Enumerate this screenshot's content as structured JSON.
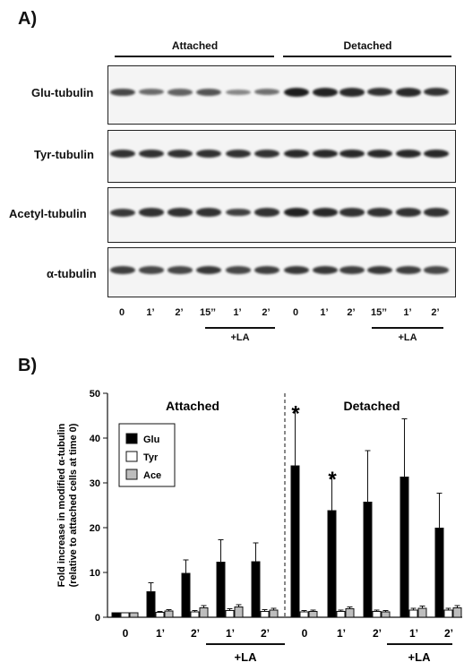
{
  "panel_a": {
    "label": "A)",
    "group_attached": "Attached",
    "group_detached": "Detached",
    "blots": [
      {
        "label": "Glu-tubulin",
        "intensity": [
          0.7,
          0.45,
          0.5,
          0.6,
          0.25,
          0.4,
          1.0,
          0.95,
          0.9,
          0.85,
          0.9,
          0.85
        ]
      },
      {
        "label": "Tyr-tubulin",
        "intensity": [
          0.85,
          0.85,
          0.85,
          0.85,
          0.85,
          0.85,
          0.9,
          0.9,
          0.9,
          0.9,
          0.9,
          0.9
        ]
      },
      {
        "label": "Acetyl-tubulin",
        "intensity": [
          0.8,
          0.85,
          0.85,
          0.85,
          0.75,
          0.85,
          0.95,
          0.9,
          0.85,
          0.85,
          0.85,
          0.85
        ]
      },
      {
        "label": "α-tubulin",
        "intensity": [
          0.75,
          0.7,
          0.7,
          0.8,
          0.7,
          0.75,
          0.8,
          0.8,
          0.75,
          0.8,
          0.75,
          0.7
        ]
      }
    ],
    "lanes": [
      "0",
      "1’",
      "2’",
      "15’’",
      "1’",
      "2’",
      "0",
      "1’",
      "2’",
      "15’’",
      "1’",
      "2’"
    ],
    "la_label": "+LA"
  },
  "panel_b": {
    "label": "B)",
    "group_attached": "Attached",
    "group_detached": "Detached",
    "la_label": "+LA"
  },
  "chart_data": {
    "type": "bar",
    "ylabel": "Fold increase in  modified α-tubulin (relative to attached cells at time 0)",
    "ylim": [
      0,
      50
    ],
    "yticks": [
      0,
      10,
      20,
      30,
      40,
      50
    ],
    "categories": [
      "0",
      "1’",
      "2’",
      "1’",
      "2’",
      "0",
      "1’",
      "2’",
      "1’",
      "2’"
    ],
    "series": [
      {
        "name": "Glu",
        "color": "#000000",
        "values": [
          1,
          5.7,
          9.8,
          12.3,
          12.4,
          33.8,
          23.8,
          25.7,
          31.3,
          19.9
        ],
        "errors": [
          0,
          2.0,
          3.0,
          5.0,
          4.2,
          12.5,
          7.8,
          11.5,
          13.0,
          7.8
        ]
      },
      {
        "name": "Tyr",
        "color": "#ffffff",
        "values": [
          1,
          1.1,
          1.2,
          1.5,
          1.3,
          1.2,
          1.3,
          1.3,
          1.6,
          1.6
        ],
        "errors": [
          0,
          0.2,
          0.3,
          0.4,
          0.4,
          0.3,
          0.3,
          0.3,
          0.4,
          0.4
        ]
      },
      {
        "name": "Ace",
        "color": "#bdbdbd",
        "values": [
          1,
          1.4,
          2.1,
          2.3,
          1.6,
          1.3,
          1.9,
          1.2,
          2.0,
          2.1
        ],
        "errors": [
          0,
          0.3,
          0.5,
          0.5,
          0.4,
          0.3,
          0.4,
          0.3,
          0.5,
          0.5
        ]
      }
    ],
    "significance": [
      "",
      "",
      "",
      "",
      "",
      "*",
      "*",
      "",
      "",
      ""
    ],
    "legend_position": "top-left"
  }
}
